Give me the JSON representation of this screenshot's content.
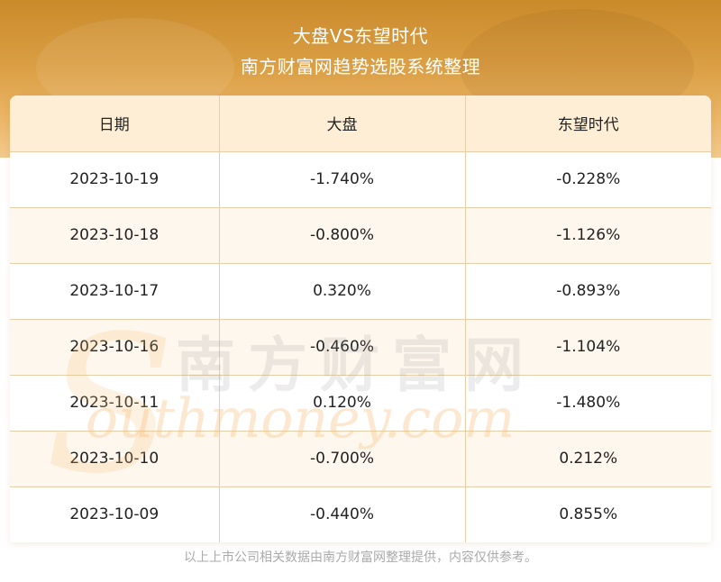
{
  "header": {
    "title": "大盘VS东望时代",
    "subtitle": "南方财富网趋势选股系统整理"
  },
  "table": {
    "columns": [
      "日期",
      "大盘",
      "东望时代"
    ],
    "rows": [
      [
        "2023-10-19",
        "-1.740%",
        "-0.228%"
      ],
      [
        "2023-10-18",
        "-0.800%",
        "-1.126%"
      ],
      [
        "2023-10-17",
        "0.320%",
        "-0.893%"
      ],
      [
        "2023-10-16",
        "-0.460%",
        "-1.104%"
      ],
      [
        "2023-10-11",
        "0.120%",
        "-1.480%"
      ],
      [
        "2023-10-10",
        "-0.700%",
        "0.212%"
      ],
      [
        "2023-10-09",
        "-0.440%",
        "0.855%"
      ]
    ]
  },
  "watermark": {
    "cn": "南方财富网",
    "en": "outhmoney.com",
    "s": "S"
  },
  "footer": {
    "note": "以上上市公司相关数据由南方财富网整理提供，内容仅供参考。"
  }
}
